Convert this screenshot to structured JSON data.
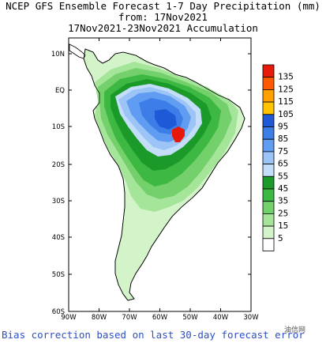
{
  "title": {
    "line1": "NCEP GFS Ensemble Forecast 1-7 Day Precipitation (mm)",
    "line2": "from: 17Nov2021",
    "line3": "17Nov2021-23Nov2021 Accumulation"
  },
  "map": {
    "lat_labels": [
      "10N",
      "EQ",
      "10S",
      "20S",
      "30S",
      "40S",
      "50S",
      "60S"
    ],
    "lon_labels": [
      "90W",
      "80W",
      "70W",
      "60W",
      "50W",
      "40W",
      "30W"
    ]
  },
  "legend": {
    "levels": [
      "135",
      "125",
      "115",
      "105",
      "95",
      "85",
      "75",
      "65",
      "55",
      "45",
      "35",
      "25",
      "15",
      "5"
    ],
    "colors": [
      "#e8190a",
      "#ff5a00",
      "#ff9f00",
      "#ffc400",
      "#1e5ad8",
      "#3c7de8",
      "#5f9cf2",
      "#9cc4f6",
      "#c4defa",
      "#1b9a2a",
      "#3cb843",
      "#73d06b",
      "#a5e59a",
      "#d3f4c8",
      "#ffffff"
    ]
  },
  "footer": {
    "bias_text": "Bias correction based on last 30-day forecast error",
    "watermark": "油信网"
  }
}
